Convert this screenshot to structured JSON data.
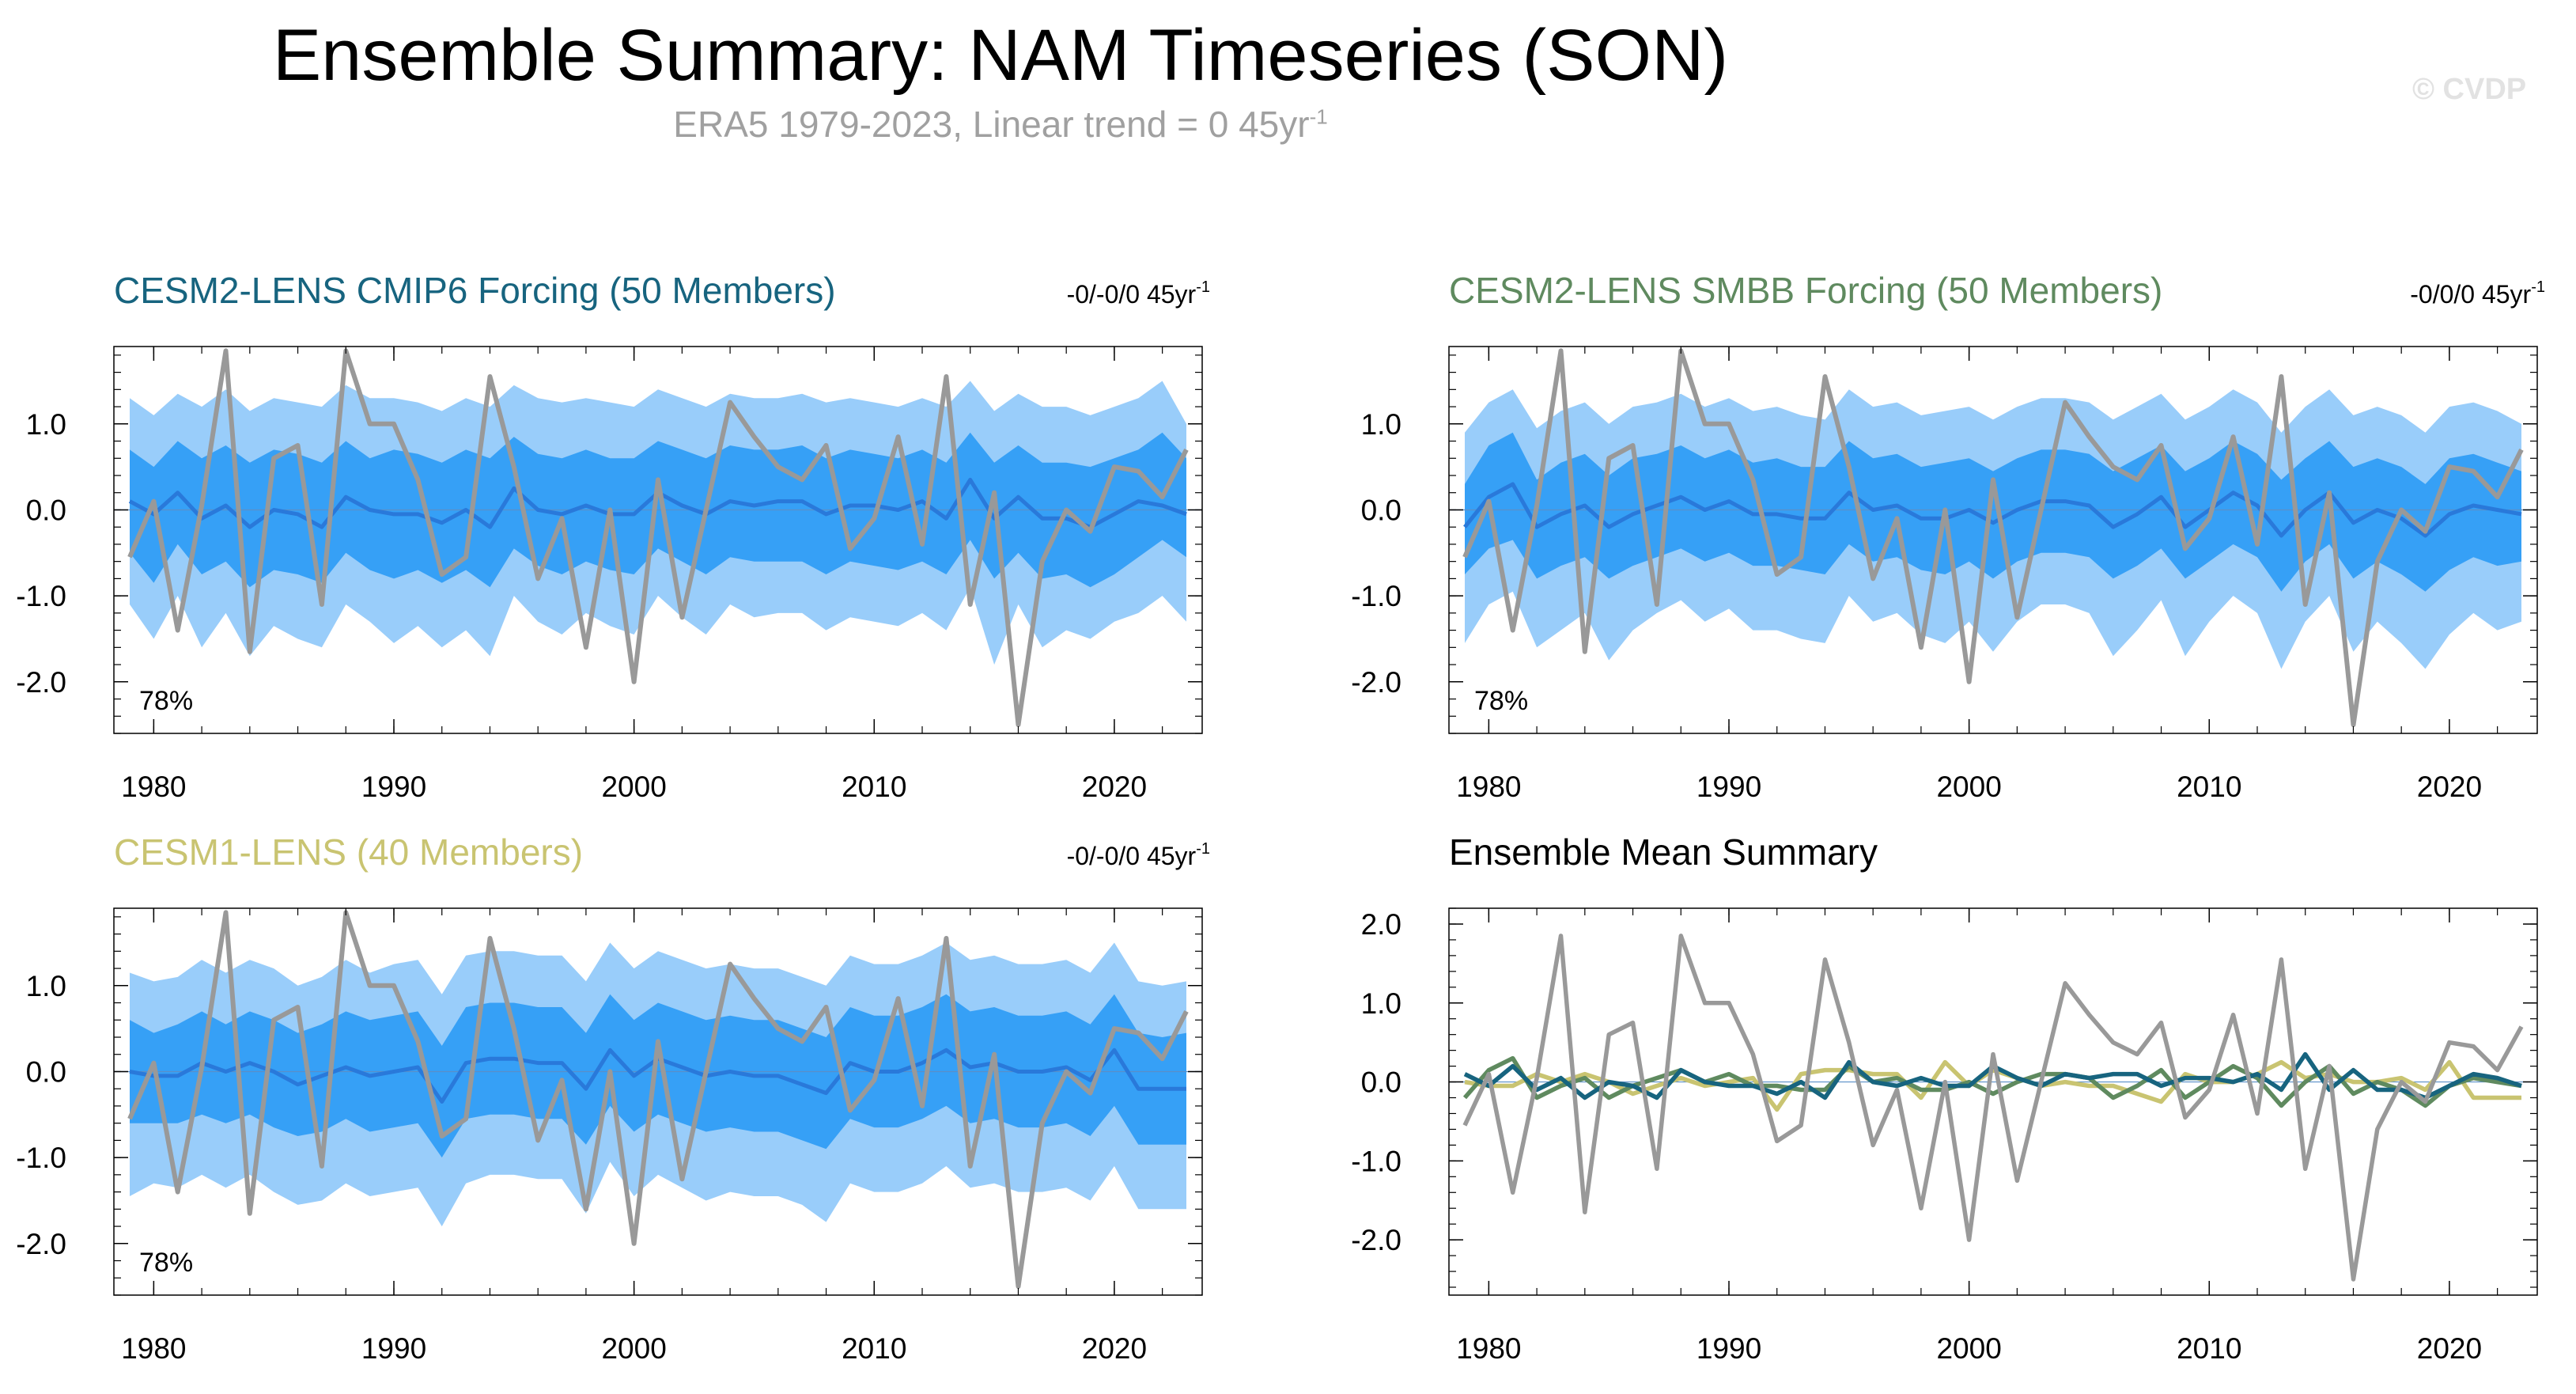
{
  "title": "Ensemble Summary: NAM Timeseries (SON)",
  "subtitle_main": "ERA5 1979-2023, Linear trend = 0 45yr",
  "subtitle_sup": "-1",
  "watermark": "© CVDP",
  "colors": {
    "obs": "#999999",
    "band_outer": "#99cdfa",
    "band_inner": "#36a0f6",
    "mean": "#2979da",
    "cmip6": "#17647f",
    "smbb": "#5f8a5f",
    "cesm1": "#c9c471"
  },
  "chart_data": [
    {
      "id": "cmip6",
      "type": "line",
      "title": "CESM2-LENS CMIP6 Forcing (50 Members)",
      "title_color": "#17647f",
      "trend_text": "-0/-0/0 45yr",
      "trend_sup": "-1",
      "percent_text": "78%",
      "x_start": 1979,
      "ylim": [
        -2.6,
        1.9
      ],
      "yticks": [
        1.0,
        0.0,
        -1.0,
        -2.0
      ],
      "ytick_labels": [
        "1.0",
        "0.0",
        "-1.0",
        "-2.0"
      ],
      "xticks": [
        1980,
        1990,
        2000,
        2010,
        2020
      ],
      "xtick_labels": [
        "1980",
        "1990",
        "2000",
        "2010",
        "2020"
      ],
      "ensemble_mean": [
        0.1,
        -0.05,
        0.2,
        -0.1,
        0.05,
        -0.2,
        0.0,
        -0.05,
        -0.2,
        0.15,
        0.0,
        -0.05,
        -0.05,
        -0.15,
        0.0,
        -0.2,
        0.25,
        0.0,
        -0.05,
        0.05,
        -0.05,
        -0.05,
        0.2,
        0.05,
        -0.05,
        0.1,
        0.05,
        0.1,
        0.1,
        -0.05,
        0.05,
        0.05,
        0.0,
        0.1,
        -0.1,
        0.35,
        -0.1,
        0.15,
        -0.1,
        -0.1,
        -0.2,
        -0.05,
        0.1,
        0.05,
        -0.05
      ],
      "band_inner_upper": [
        0.7,
        0.5,
        0.8,
        0.6,
        0.75,
        0.55,
        0.7,
        0.65,
        0.55,
        0.8,
        0.6,
        0.7,
        0.65,
        0.55,
        0.7,
        0.6,
        0.85,
        0.65,
        0.6,
        0.7,
        0.6,
        0.6,
        0.8,
        0.7,
        0.6,
        0.75,
        0.7,
        0.7,
        0.75,
        0.6,
        0.7,
        0.65,
        0.6,
        0.7,
        0.55,
        0.9,
        0.55,
        0.75,
        0.55,
        0.55,
        0.5,
        0.6,
        0.7,
        0.9,
        0.6
      ],
      "band_inner_lower": [
        -0.5,
        -0.85,
        -0.4,
        -0.75,
        -0.6,
        -0.9,
        -0.7,
        -0.75,
        -0.85,
        -0.5,
        -0.7,
        -0.8,
        -0.7,
        -0.85,
        -0.7,
        -0.9,
        -0.45,
        -0.65,
        -0.75,
        -0.6,
        -0.7,
        -0.75,
        -0.45,
        -0.6,
        -0.75,
        -0.55,
        -0.6,
        -0.6,
        -0.6,
        -0.75,
        -0.6,
        -0.65,
        -0.7,
        -0.6,
        -0.75,
        -0.35,
        -0.8,
        -0.5,
        -0.8,
        -0.75,
        -0.9,
        -0.75,
        -0.55,
        -0.35,
        -0.55
      ],
      "band_outer_upper": [
        1.3,
        1.1,
        1.35,
        1.2,
        1.4,
        1.15,
        1.3,
        1.25,
        1.2,
        1.45,
        1.3,
        1.3,
        1.25,
        1.15,
        1.3,
        1.2,
        1.45,
        1.3,
        1.25,
        1.3,
        1.25,
        1.2,
        1.4,
        1.3,
        1.2,
        1.35,
        1.3,
        1.3,
        1.35,
        1.25,
        1.3,
        1.25,
        1.2,
        1.3,
        1.2,
        1.5,
        1.15,
        1.35,
        1.2,
        1.2,
        1.1,
        1.2,
        1.3,
        1.5,
        1.0
      ],
      "band_outer_lower": [
        -1.1,
        -1.5,
        -1.0,
        -1.6,
        -1.2,
        -1.7,
        -1.35,
        -1.5,
        -1.6,
        -1.1,
        -1.3,
        -1.55,
        -1.35,
        -1.6,
        -1.4,
        -1.7,
        -1.0,
        -1.3,
        -1.45,
        -1.2,
        -1.35,
        -1.45,
        -1.0,
        -1.25,
        -1.45,
        -1.1,
        -1.25,
        -1.2,
        -1.2,
        -1.4,
        -1.25,
        -1.3,
        -1.35,
        -1.2,
        -1.4,
        -0.9,
        -1.8,
        -1.1,
        -1.6,
        -1.4,
        -1.5,
        -1.3,
        -1.2,
        -1.0,
        -1.3
      ],
      "obs": [
        -0.55,
        0.1,
        -1.4,
        0.05,
        1.85,
        -1.65,
        0.6,
        0.75,
        -1.1,
        1.85,
        1.0,
        1.0,
        0.35,
        -0.75,
        -0.55,
        1.55,
        0.5,
        -0.8,
        -0.1,
        -1.6,
        0.0,
        -2.0,
        0.35,
        -1.25,
        0.0,
        1.25,
        0.85,
        0.5,
        0.35,
        0.75,
        -0.45,
        -0.1,
        0.85,
        -0.4,
        1.55,
        -1.1,
        0.2,
        -2.5,
        -0.6,
        0.0,
        -0.25,
        0.5,
        0.45,
        0.15,
        0.7
      ]
    },
    {
      "id": "smbb",
      "type": "line",
      "title": "CESM2-LENS SMBB Forcing (50 Members)",
      "title_color": "#5f8a5f",
      "trend_text": "-0/0/0 45yr",
      "trend_sup": "-1",
      "percent_text": "78%",
      "x_start": 1979,
      "ylim": [
        -2.6,
        1.9
      ],
      "yticks": [
        1.0,
        0.0,
        -1.0,
        -2.0
      ],
      "ytick_labels": [
        "1.0",
        "0.0",
        "-1.0",
        "-2.0"
      ],
      "xticks": [
        1980,
        1990,
        2000,
        2010,
        2020
      ],
      "xtick_labels": [
        "1980",
        "1990",
        "2000",
        "2010",
        "2020"
      ],
      "ensemble_mean": [
        -0.2,
        0.15,
        0.3,
        -0.2,
        -0.05,
        0.05,
        -0.2,
        -0.05,
        0.05,
        0.15,
        0.0,
        0.1,
        -0.05,
        -0.05,
        -0.1,
        -0.1,
        0.2,
        0.0,
        0.05,
        -0.1,
        -0.1,
        0.0,
        -0.15,
        0.0,
        0.1,
        0.1,
        0.05,
        -0.2,
        -0.05,
        0.15,
        -0.2,
        0.0,
        0.2,
        0.05,
        -0.3,
        0.0,
        0.2,
        -0.15,
        0.0,
        -0.1,
        -0.3,
        -0.05,
        0.05,
        0.0,
        -0.05
      ],
      "band_inner_upper": [
        0.3,
        0.75,
        0.9,
        0.35,
        0.55,
        0.65,
        0.4,
        0.6,
        0.65,
        0.75,
        0.6,
        0.7,
        0.55,
        0.6,
        0.5,
        0.5,
        0.8,
        0.6,
        0.65,
        0.5,
        0.55,
        0.6,
        0.45,
        0.6,
        0.7,
        0.7,
        0.65,
        0.45,
        0.6,
        0.75,
        0.45,
        0.6,
        0.8,
        0.65,
        0.35,
        0.6,
        0.8,
        0.5,
        0.6,
        0.5,
        0.3,
        0.6,
        0.65,
        0.55,
        0.45
      ],
      "band_inner_lower": [
        -0.75,
        -0.45,
        -0.35,
        -0.8,
        -0.65,
        -0.55,
        -0.8,
        -0.65,
        -0.55,
        -0.45,
        -0.6,
        -0.5,
        -0.65,
        -0.65,
        -0.7,
        -0.75,
        -0.4,
        -0.6,
        -0.55,
        -0.7,
        -0.75,
        -0.6,
        -0.8,
        -0.6,
        -0.5,
        -0.5,
        -0.55,
        -0.8,
        -0.65,
        -0.45,
        -0.8,
        -0.6,
        -0.4,
        -0.55,
        -0.95,
        -0.6,
        -0.4,
        -0.8,
        -0.6,
        -0.75,
        -0.95,
        -0.7,
        -0.55,
        -0.65,
        -0.6
      ],
      "band_outer_upper": [
        0.9,
        1.25,
        1.4,
        0.95,
        1.15,
        1.25,
        1.0,
        1.2,
        1.25,
        1.35,
        1.2,
        1.3,
        1.15,
        1.2,
        1.1,
        1.05,
        1.4,
        1.2,
        1.25,
        1.1,
        1.15,
        1.2,
        1.05,
        1.2,
        1.3,
        1.3,
        1.25,
        1.05,
        1.2,
        1.35,
        1.05,
        1.2,
        1.4,
        1.25,
        0.9,
        1.2,
        1.4,
        1.1,
        1.2,
        1.1,
        0.9,
        1.2,
        1.25,
        1.15,
        1.0
      ],
      "band_outer_lower": [
        -1.55,
        -1.1,
        -0.95,
        -1.6,
        -1.4,
        -1.2,
        -1.75,
        -1.4,
        -1.2,
        -1.05,
        -1.3,
        -1.15,
        -1.4,
        -1.4,
        -1.5,
        -1.55,
        -1.0,
        -1.3,
        -1.2,
        -1.45,
        -1.55,
        -1.3,
        -1.65,
        -1.3,
        -1.1,
        -1.1,
        -1.2,
        -1.7,
        -1.4,
        -1.05,
        -1.7,
        -1.3,
        -1.0,
        -1.2,
        -1.85,
        -1.3,
        -1.0,
        -1.65,
        -1.3,
        -1.55,
        -1.85,
        -1.45,
        -1.2,
        -1.4,
        -1.3
      ],
      "obs": [
        -0.55,
        0.1,
        -1.4,
        0.05,
        1.85,
        -1.65,
        0.6,
        0.75,
        -1.1,
        1.85,
        1.0,
        1.0,
        0.35,
        -0.75,
        -0.55,
        1.55,
        0.5,
        -0.8,
        -0.1,
        -1.6,
        0.0,
        -2.0,
        0.35,
        -1.25,
        0.0,
        1.25,
        0.85,
        0.5,
        0.35,
        0.75,
        -0.45,
        -0.1,
        0.85,
        -0.4,
        1.55,
        -1.1,
        0.2,
        -2.5,
        -0.6,
        0.0,
        -0.25,
        0.5,
        0.45,
        0.15,
        0.7
      ]
    },
    {
      "id": "cesm1",
      "type": "line",
      "title": "CESM1-LENS (40 Members)",
      "title_color": "#c9c471",
      "trend_text": "-0/-0/0 45yr",
      "trend_sup": "-1",
      "percent_text": "78%",
      "x_start": 1979,
      "ylim": [
        -2.6,
        1.9
      ],
      "yticks": [
        1.0,
        0.0,
        -1.0,
        -2.0
      ],
      "ytick_labels": [
        "1.0",
        "0.0",
        "-1.0",
        "-2.0"
      ],
      "xticks": [
        1980,
        1990,
        2000,
        2010,
        2020
      ],
      "xtick_labels": [
        "1980",
        "1990",
        "2000",
        "2010",
        "2020"
      ],
      "ensemble_mean": [
        0.0,
        -0.05,
        -0.05,
        0.1,
        0.0,
        0.1,
        0.0,
        -0.15,
        -0.05,
        0.05,
        -0.05,
        0.0,
        0.05,
        -0.35,
        0.1,
        0.15,
        0.15,
        0.1,
        0.1,
        -0.2,
        0.25,
        -0.05,
        0.15,
        0.05,
        -0.05,
        0.0,
        -0.05,
        -0.05,
        -0.15,
        -0.25,
        0.1,
        0.0,
        0.0,
        0.1,
        0.25,
        0.05,
        0.1,
        0.0,
        0.0,
        0.05,
        -0.1,
        0.25,
        -0.2,
        -0.2,
        -0.2
      ],
      "band_inner_upper": [
        0.6,
        0.45,
        0.55,
        0.7,
        0.55,
        0.7,
        0.6,
        0.45,
        0.55,
        0.7,
        0.6,
        0.65,
        0.7,
        0.3,
        0.75,
        0.8,
        0.8,
        0.75,
        0.75,
        0.45,
        0.9,
        0.6,
        0.8,
        0.7,
        0.6,
        0.65,
        0.6,
        0.6,
        0.5,
        0.4,
        0.75,
        0.65,
        0.65,
        0.75,
        0.9,
        0.7,
        0.75,
        0.65,
        0.65,
        0.7,
        0.55,
        0.9,
        0.45,
        0.4,
        0.45
      ],
      "band_inner_lower": [
        -0.6,
        -0.6,
        -0.6,
        -0.5,
        -0.6,
        -0.5,
        -0.65,
        -0.75,
        -0.7,
        -0.55,
        -0.7,
        -0.65,
        -0.6,
        -1.0,
        -0.55,
        -0.5,
        -0.5,
        -0.55,
        -0.55,
        -0.85,
        -0.4,
        -0.7,
        -0.5,
        -0.6,
        -0.7,
        -0.65,
        -0.7,
        -0.7,
        -0.8,
        -0.9,
        -0.55,
        -0.65,
        -0.65,
        -0.55,
        -0.4,
        -0.6,
        -0.55,
        -0.65,
        -0.65,
        -0.6,
        -0.75,
        -0.4,
        -0.85,
        -0.85,
        -0.85
      ],
      "band_outer_upper": [
        1.15,
        1.05,
        1.1,
        1.3,
        1.15,
        1.3,
        1.2,
        1.0,
        1.1,
        1.3,
        1.15,
        1.25,
        1.3,
        0.9,
        1.35,
        1.4,
        1.4,
        1.35,
        1.35,
        1.05,
        1.5,
        1.2,
        1.4,
        1.3,
        1.2,
        1.25,
        1.2,
        1.2,
        1.1,
        1.0,
        1.35,
        1.25,
        1.25,
        1.35,
        1.5,
        1.3,
        1.35,
        1.25,
        1.25,
        1.3,
        1.15,
        1.5,
        1.05,
        1.0,
        1.05
      ],
      "band_outer_lower": [
        -1.45,
        -1.3,
        -1.35,
        -1.2,
        -1.35,
        -1.2,
        -1.4,
        -1.55,
        -1.5,
        -1.3,
        -1.45,
        -1.4,
        -1.35,
        -1.8,
        -1.3,
        -1.2,
        -1.2,
        -1.25,
        -1.25,
        -1.65,
        -1.05,
        -1.45,
        -1.2,
        -1.35,
        -1.5,
        -1.4,
        -1.45,
        -1.45,
        -1.55,
        -1.75,
        -1.3,
        -1.4,
        -1.4,
        -1.3,
        -1.1,
        -1.35,
        -1.3,
        -1.4,
        -1.4,
        -1.35,
        -1.5,
        -1.1,
        -1.6,
        -1.6,
        -1.6
      ],
      "obs": [
        -0.55,
        0.1,
        -1.4,
        0.05,
        1.85,
        -1.65,
        0.6,
        0.75,
        -1.1,
        1.85,
        1.0,
        1.0,
        0.35,
        -0.75,
        -0.55,
        1.55,
        0.5,
        -0.8,
        -0.1,
        -1.6,
        0.0,
        -2.0,
        0.35,
        -1.25,
        0.0,
        1.25,
        0.85,
        0.5,
        0.35,
        0.75,
        -0.45,
        -0.1,
        0.85,
        -0.4,
        1.55,
        -1.1,
        0.2,
        -2.5,
        -0.6,
        0.0,
        -0.25,
        0.5,
        0.45,
        0.15,
        0.7
      ]
    },
    {
      "id": "summary",
      "type": "line",
      "title": "Ensemble Mean Summary",
      "title_color": "#000000",
      "x_start": 1979,
      "ylim": [
        -2.7,
        2.2
      ],
      "yticks": [
        2.0,
        1.0,
        0.0,
        -1.0,
        -2.0
      ],
      "ytick_labels": [
        "2.0",
        "1.0",
        "0.0",
        "-1.0",
        "-2.0"
      ],
      "xticks": [
        1980,
        1990,
        2000,
        2010,
        2020
      ],
      "xtick_labels": [
        "1980",
        "1990",
        "2000",
        "2010",
        "2020"
      ],
      "series": [
        {
          "name": "CESM1-LENS",
          "color": "#c9c471",
          "values": [
            0.0,
            -0.05,
            -0.05,
            0.1,
            0.0,
            0.1,
            0.0,
            -0.15,
            -0.05,
            0.05,
            -0.05,
            0.0,
            0.05,
            -0.35,
            0.1,
            0.15,
            0.15,
            0.1,
            0.1,
            -0.2,
            0.25,
            -0.05,
            0.15,
            0.05,
            -0.05,
            0.0,
            -0.05,
            -0.05,
            -0.15,
            -0.25,
            0.1,
            0.0,
            0.0,
            0.1,
            0.25,
            0.05,
            0.1,
            0.0,
            0.0,
            0.05,
            -0.1,
            0.25,
            -0.2,
            -0.2,
            -0.2
          ]
        },
        {
          "name": "CESM2-LENS SMBB",
          "color": "#5f8a5f",
          "values": [
            -0.2,
            0.15,
            0.3,
            -0.2,
            -0.05,
            0.05,
            -0.2,
            -0.05,
            0.05,
            0.15,
            0.0,
            0.1,
            -0.05,
            -0.05,
            -0.1,
            -0.1,
            0.2,
            0.0,
            0.05,
            -0.1,
            -0.1,
            0.0,
            -0.15,
            0.0,
            0.1,
            0.1,
            0.05,
            -0.2,
            -0.05,
            0.15,
            -0.2,
            0.0,
            0.2,
            0.05,
            -0.3,
            0.0,
            0.2,
            -0.15,
            0.0,
            -0.1,
            -0.3,
            -0.05,
            0.05,
            0.0,
            -0.05
          ]
        },
        {
          "name": "CESM2-LENS CMIP6",
          "color": "#17647f",
          "values": [
            0.1,
            -0.05,
            0.2,
            -0.1,
            0.05,
            -0.2,
            0.0,
            -0.05,
            -0.2,
            0.15,
            0.0,
            -0.05,
            -0.05,
            -0.15,
            0.0,
            -0.2,
            0.25,
            0.0,
            -0.05,
            0.05,
            -0.05,
            -0.05,
            0.2,
            0.05,
            -0.05,
            0.1,
            0.05,
            0.1,
            0.1,
            -0.05,
            0.05,
            0.05,
            0.0,
            0.1,
            -0.1,
            0.35,
            -0.1,
            0.15,
            -0.1,
            -0.1,
            -0.2,
            -0.05,
            0.1,
            0.05,
            -0.05
          ]
        },
        {
          "name": "ERA5",
          "color": "#999999",
          "values": [
            -0.55,
            0.1,
            -1.4,
            0.05,
            1.85,
            -1.65,
            0.6,
            0.75,
            -1.1,
            1.85,
            1.0,
            1.0,
            0.35,
            -0.75,
            -0.55,
            1.55,
            0.5,
            -0.8,
            -0.1,
            -1.6,
            0.0,
            -2.0,
            0.35,
            -1.25,
            0.0,
            1.25,
            0.85,
            0.5,
            0.35,
            0.75,
            -0.45,
            -0.1,
            0.85,
            -0.4,
            1.55,
            -1.1,
            0.2,
            -2.5,
            -0.6,
            0.0,
            -0.25,
            0.5,
            0.45,
            0.15,
            0.7
          ]
        }
      ]
    }
  ]
}
